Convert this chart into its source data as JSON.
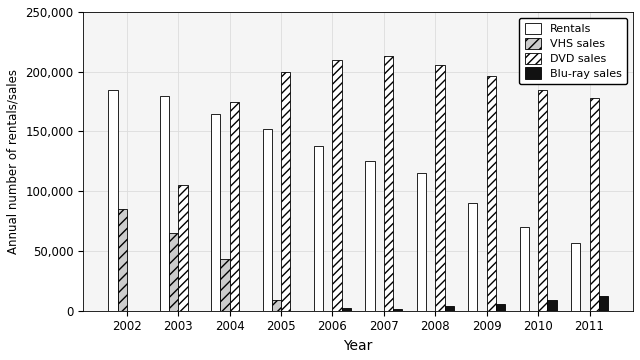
{
  "years": [
    2002,
    2003,
    2004,
    2005,
    2006,
    2007,
    2008,
    2009,
    2010,
    2011
  ],
  "rentals": [
    185000,
    180000,
    165000,
    152000,
    138000,
    125000,
    115000,
    90000,
    70000,
    57000
  ],
  "vhs_sales": [
    85000,
    65000,
    43000,
    9000,
    0,
    0,
    0,
    0,
    0,
    0
  ],
  "dvd_sales": [
    0,
    105000,
    175000,
    200000,
    210000,
    213000,
    206000,
    196000,
    185000,
    178000
  ],
  "bluray_sales": [
    0,
    0,
    0,
    0,
    2500,
    1500,
    4000,
    5500,
    9000,
    12000
  ],
  "ylabel": "Annual number of rentals/sales",
  "xlabel": "Year",
  "ylim": [
    0,
    250000
  ],
  "yticks": [
    0,
    50000,
    100000,
    150000,
    200000,
    250000
  ],
  "ytick_labels": [
    "0",
    "50,000",
    "100,000",
    "150,000",
    "200,000",
    "250,000"
  ],
  "legend_labels": [
    "Rentals",
    "VHS sales",
    "DVD sales",
    "Blu-ray sales"
  ],
  "bar_width": 0.18,
  "rentals_color": "#ffffff",
  "vhs_color": "#cccccc",
  "vhs_hatch": "///",
  "dvd_hatch": "////",
  "bluray_color": "#111111",
  "background_color": "#f5f5f5",
  "grid_color": "#dddddd"
}
